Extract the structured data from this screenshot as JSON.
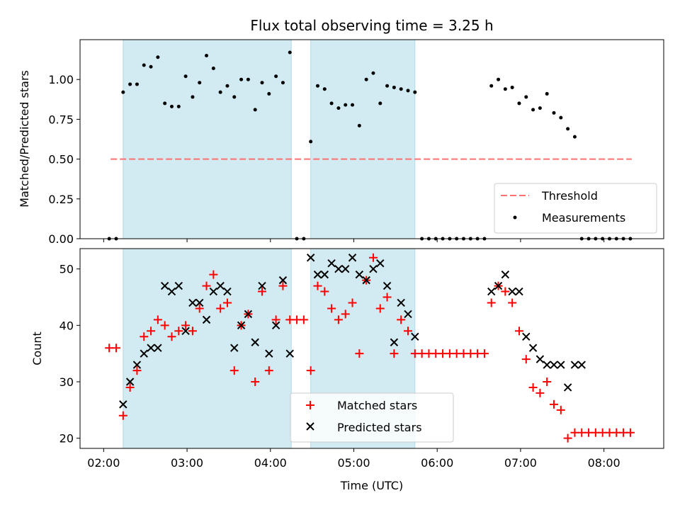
{
  "figure": {
    "title": "Flux total observing time = 3.25 h",
    "xlabel": "Time (UTC)"
  },
  "chart_data": [
    {
      "type": "scatter",
      "title": "Flux total observing time = 3.25 h",
      "ylabel": "Matched/Predicted stars",
      "xlim": [
        "01:43",
        "08:43"
      ],
      "ylim": [
        0,
        1.25
      ],
      "yticks": [
        "0.00",
        "0.25",
        "0.50",
        "0.75",
        "1.00"
      ],
      "xticks": [
        "02:00",
        "03:00",
        "04:00",
        "05:00",
        "06:00",
        "07:00",
        "08:00"
      ],
      "xtick_labels_visible": false,
      "grid": false,
      "legend": {
        "position": "lower right"
      },
      "shaded_intervals": [
        [
          "02:14",
          "04:15"
        ],
        [
          "04:29",
          "05:44"
        ]
      ],
      "shade_color": "#add8e6",
      "threshold": {
        "name": "Threshold",
        "y": 0.5,
        "x_from": "02:05",
        "x_to": "08:20",
        "style": "dashed",
        "color": "#ff7070"
      },
      "series": [
        {
          "name": "Measurements",
          "marker": "dot",
          "color": "#000000",
          "x": [
            "02:04",
            "02:09",
            "02:14",
            "02:19",
            "02:24",
            "02:29",
            "02:34",
            "02:39",
            "02:44",
            "02:49",
            "02:54",
            "02:59",
            "03:04",
            "03:09",
            "03:14",
            "03:19",
            "03:24",
            "03:29",
            "03:34",
            "03:39",
            "03:44",
            "03:49",
            "03:54",
            "03:59",
            "04:04",
            "04:09",
            "04:14",
            "04:19",
            "04:24",
            "04:29",
            "04:34",
            "04:39",
            "04:44",
            "04:49",
            "04:54",
            "04:59",
            "05:04",
            "05:09",
            "05:14",
            "05:19",
            "05:24",
            "05:29",
            "05:34",
            "05:39",
            "05:44",
            "05:49",
            "05:54",
            "05:59",
            "06:04",
            "06:09",
            "06:14",
            "06:19",
            "06:24",
            "06:29",
            "06:34",
            "06:39",
            "06:44",
            "06:49",
            "06:54",
            "06:59",
            "07:04",
            "07:09",
            "07:14",
            "07:19",
            "07:24",
            "07:29",
            "07:34",
            "07:39",
            "07:44",
            "07:49",
            "07:54",
            "07:59",
            "08:04",
            "08:09",
            "08:14",
            "08:19"
          ],
          "y": [
            0.0,
            0.0,
            0.92,
            0.97,
            0.97,
            1.09,
            1.08,
            1.14,
            0.85,
            0.83,
            0.83,
            1.02,
            0.89,
            0.98,
            1.15,
            1.07,
            0.92,
            0.96,
            0.89,
            1.0,
            1.0,
            0.81,
            0.98,
            0.91,
            1.02,
            0.98,
            1.17,
            0.0,
            0.0,
            0.61,
            0.96,
            0.94,
            0.85,
            0.82,
            0.84,
            0.84,
            0.71,
            1.0,
            1.04,
            0.85,
            0.96,
            0.95,
            0.94,
            0.93,
            0.92,
            0.0,
            0.0,
            0.0,
            0.0,
            0.0,
            0.0,
            0.0,
            0.0,
            0.0,
            0.0,
            0.96,
            1.0,
            0.94,
            0.95,
            0.85,
            0.89,
            0.81,
            0.82,
            0.91,
            0.79,
            0.76,
            0.69,
            0.64,
            0.0,
            0.0,
            0.0,
            0.0,
            0.0,
            0.0,
            0.0,
            0.0
          ]
        }
      ]
    },
    {
      "type": "scatter",
      "ylabel": "Count",
      "xlabel": "Time (UTC)",
      "xlim": [
        "01:43",
        "08:43"
      ],
      "ylim": [
        18.2,
        53.6
      ],
      "yticks": [
        "20",
        "30",
        "40",
        "50"
      ],
      "xticks": [
        "02:00",
        "03:00",
        "04:00",
        "05:00",
        "06:00",
        "07:00",
        "08:00"
      ],
      "grid": false,
      "legend": {
        "position": "lower center"
      },
      "shaded_intervals": [
        [
          "02:14",
          "04:15"
        ],
        [
          "04:29",
          "05:44"
        ]
      ],
      "shade_color": "#add8e6",
      "series": [
        {
          "name": "Matched stars",
          "marker": "plus",
          "color": "#ff0000",
          "x": [
            "02:04",
            "02:09",
            "02:14",
            "02:19",
            "02:24",
            "02:29",
            "02:34",
            "02:39",
            "02:44",
            "02:49",
            "02:54",
            "02:59",
            "03:04",
            "03:09",
            "03:14",
            "03:19",
            "03:24",
            "03:29",
            "03:34",
            "03:39",
            "03:44",
            "03:49",
            "03:54",
            "03:59",
            "04:04",
            "04:09",
            "04:14",
            "04:19",
            "04:24",
            "04:29",
            "04:34",
            "04:39",
            "04:44",
            "04:49",
            "04:54",
            "04:59",
            "05:04",
            "05:09",
            "05:14",
            "05:19",
            "05:24",
            "05:29",
            "05:34",
            "05:39",
            "05:44",
            "05:49",
            "05:54",
            "05:59",
            "06:04",
            "06:09",
            "06:14",
            "06:19",
            "06:24",
            "06:29",
            "06:34",
            "06:39",
            "06:44",
            "06:49",
            "06:54",
            "06:59",
            "07:04",
            "07:09",
            "07:14",
            "07:19",
            "07:24",
            "07:29",
            "07:34",
            "07:39",
            "07:44",
            "07:49",
            "07:54",
            "07:59",
            "08:04",
            "08:09",
            "08:14",
            "08:19"
          ],
          "y": [
            36,
            36,
            24,
            29,
            32,
            38,
            39,
            41,
            40,
            38,
            39,
            40,
            39,
            43,
            47,
            49,
            43,
            44,
            32,
            40,
            42,
            30,
            46,
            32,
            41,
            47,
            41,
            41,
            41,
            32,
            47,
            46,
            43,
            41,
            42,
            44,
            35,
            48,
            52,
            43,
            45,
            35,
            41,
            39,
            35,
            35,
            35,
            35,
            35,
            35,
            35,
            35,
            35,
            35,
            35,
            44,
            47,
            46,
            44,
            39,
            34,
            29,
            28,
            30,
            26,
            25,
            20,
            21,
            21,
            21,
            21,
            21,
            21,
            21,
            21,
            21
          ]
        },
        {
          "name": "Predicted stars",
          "marker": "x",
          "color": "#000000",
          "x": [
            "02:14",
            "02:19",
            "02:24",
            "02:29",
            "02:34",
            "02:39",
            "02:44",
            "02:49",
            "02:54",
            "02:59",
            "03:04",
            "03:09",
            "03:14",
            "03:19",
            "03:24",
            "03:29",
            "03:34",
            "03:39",
            "03:44",
            "03:49",
            "03:54",
            "03:59",
            "04:04",
            "04:09",
            "04:14",
            "04:29",
            "04:34",
            "04:39",
            "04:44",
            "04:49",
            "04:54",
            "04:59",
            "05:04",
            "05:09",
            "05:14",
            "05:19",
            "05:24",
            "05:29",
            "05:34",
            "05:39",
            "05:44",
            "06:39",
            "06:44",
            "06:49",
            "06:54",
            "06:59",
            "07:04",
            "07:09",
            "07:14",
            "07:19",
            "07:24",
            "07:29",
            "07:34",
            "07:39",
            "07:44"
          ],
          "y": [
            26,
            30,
            33,
            35,
            36,
            36,
            47,
            46,
            47,
            39,
            44,
            44,
            41,
            46,
            47,
            46,
            36,
            40,
            42,
            37,
            47,
            35,
            40,
            48,
            35,
            52,
            49,
            49,
            51,
            50,
            50,
            52,
            49,
            48,
            50,
            51,
            47,
            37,
            44,
            42,
            38,
            46,
            47,
            49,
            46,
            46,
            38,
            36,
            34,
            33,
            33,
            33,
            29,
            33,
            33
          ]
        }
      ]
    }
  ]
}
